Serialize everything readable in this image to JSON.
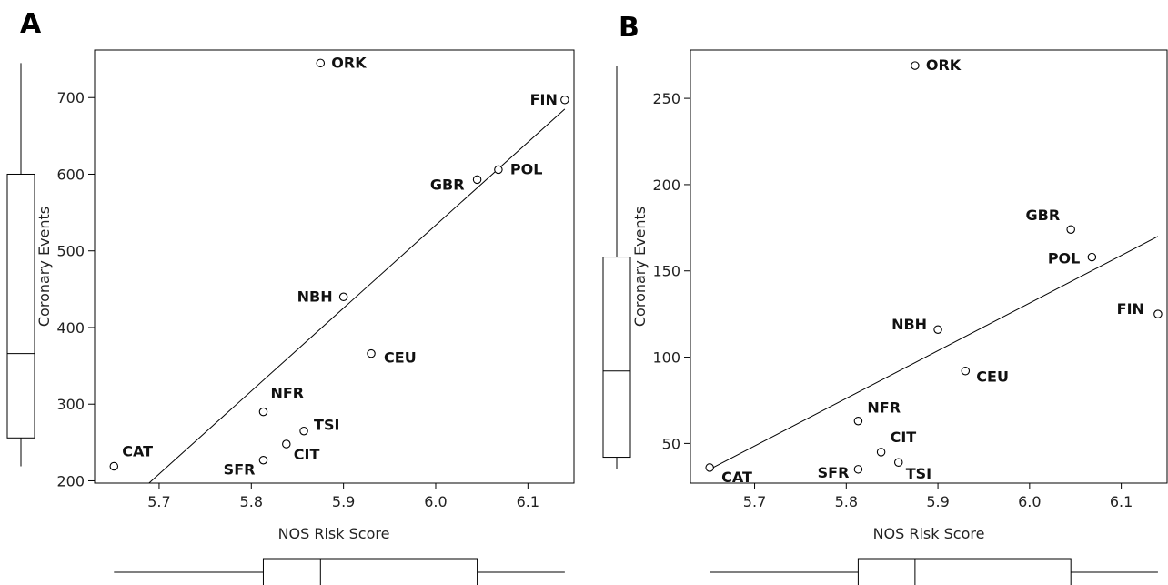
{
  "chart_data": [
    {
      "type": "scatter",
      "panel_label": "A",
      "xlabel": "NOS Risk Score",
      "ylabel": "Coronary Events",
      "xlim": [
        5.63,
        6.15
      ],
      "ylim": [
        197,
        762
      ],
      "x_ticks": [
        "5.7",
        "5.8",
        "5.9",
        "6.0",
        "6.1"
      ],
      "y_ticks": [
        "200",
        "300",
        "400",
        "500",
        "600",
        "700"
      ],
      "points": [
        {
          "label": "ORK",
          "x": 5.875,
          "y": 745
        },
        {
          "label": "FIN",
          "x": 6.14,
          "y": 697
        },
        {
          "label": "POL",
          "x": 6.068,
          "y": 606
        },
        {
          "label": "GBR",
          "x": 6.045,
          "y": 593
        },
        {
          "label": "NBH",
          "x": 5.9,
          "y": 440
        },
        {
          "label": "CEU",
          "x": 5.93,
          "y": 366
        },
        {
          "label": "NFR",
          "x": 5.813,
          "y": 290
        },
        {
          "label": "TSI",
          "x": 5.857,
          "y": 265
        },
        {
          "label": "CIT",
          "x": 5.838,
          "y": 248
        },
        {
          "label": "SFR",
          "x": 5.813,
          "y": 227
        },
        {
          "label": "CAT",
          "x": 5.651,
          "y": 219
        }
      ],
      "fit_line": {
        "x": [
          5.689,
          6.14
        ],
        "y": [
          197,
          685
        ]
      },
      "x_boxplot": {
        "min": 5.651,
        "q1": 5.813,
        "median": 5.875,
        "q3": 6.045,
        "max": 6.14
      },
      "y_boxplot": {
        "min": 219,
        "q1": 256,
        "median": 366,
        "q3": 600,
        "max": 745
      }
    },
    {
      "type": "scatter",
      "panel_label": "B",
      "xlabel": "NOS Risk Score",
      "ylabel": "Coronary Events",
      "xlim": [
        5.63,
        6.15
      ],
      "ylim": [
        27,
        278
      ],
      "x_ticks": [
        "5.7",
        "5.8",
        "5.9",
        "6.0",
        "6.1"
      ],
      "y_ticks": [
        "50",
        "100",
        "150",
        "200",
        "250"
      ],
      "points": [
        {
          "label": "ORK",
          "x": 5.875,
          "y": 269
        },
        {
          "label": "GBR",
          "x": 6.045,
          "y": 174
        },
        {
          "label": "POL",
          "x": 6.068,
          "y": 158
        },
        {
          "label": "FIN",
          "x": 6.14,
          "y": 125
        },
        {
          "label": "NBH",
          "x": 5.9,
          "y": 116
        },
        {
          "label": "CEU",
          "x": 5.93,
          "y": 92
        },
        {
          "label": "NFR",
          "x": 5.813,
          "y": 63
        },
        {
          "label": "CIT",
          "x": 5.838,
          "y": 45
        },
        {
          "label": "TSI",
          "x": 5.857,
          "y": 39
        },
        {
          "label": "SFR",
          "x": 5.813,
          "y": 35
        },
        {
          "label": "CAT",
          "x": 5.651,
          "y": 36
        }
      ],
      "fit_line": {
        "x": [
          5.651,
          6.14
        ],
        "y": [
          35,
          170
        ]
      },
      "x_boxplot": {
        "min": 5.651,
        "q1": 5.813,
        "median": 5.875,
        "q3": 6.045,
        "max": 6.14
      },
      "y_boxplot": {
        "min": 35,
        "q1": 42,
        "median": 92,
        "q3": 158,
        "max": 269
      }
    }
  ]
}
